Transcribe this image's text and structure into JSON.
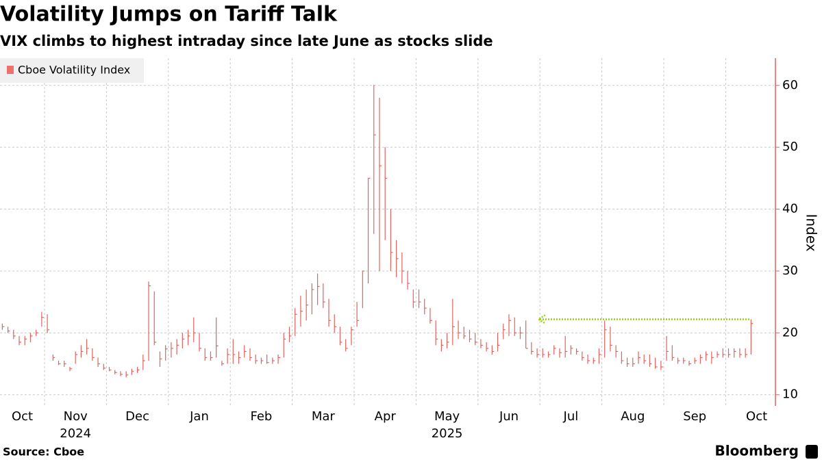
{
  "chart_data": {
    "type": "ohlc",
    "title": "Volatility Jumps on Tariff Talk",
    "subtitle": "VIX climbs to highest intraday since late June as stocks slide",
    "y_label": "Index",
    "source": "Source: Cboe",
    "brand": "Bloomberg",
    "categories": [
      "Oct",
      "Nov",
      "Dec",
      "Jan",
      "Feb",
      "Mar",
      "Apr",
      "May",
      "Jun",
      "Jul",
      "Aug",
      "Sep",
      "Oct"
    ],
    "years": [
      null,
      "2024",
      null,
      null,
      null,
      null,
      null,
      "2025",
      null,
      null,
      null,
      null,
      null
    ],
    "ylim": [
      8.2,
      64.4
    ],
    "yticks": [
      10,
      20,
      30,
      40,
      50,
      60
    ],
    "grid": true,
    "legend": "top-left",
    "arrow_color": "#8fd400",
    "series": [
      {
        "name": "Cboe Volatility Index",
        "color": "#e0625c",
        "high": [
          [
            21.5,
            21,
            20.5,
            19.5,
            19.5,
            20,
            20.5,
            23.4
          ],
          [
            23,
            16.5,
            15.5,
            15.5,
            14.5,
            17,
            18,
            19,
            17.5,
            16,
            15
          ],
          [
            14.5,
            14,
            13.8,
            13.8,
            14.2,
            14.5,
            16.5,
            28.3,
            26.7,
            17,
            18
          ],
          [
            18.5,
            19,
            20,
            20.5,
            22.5,
            20,
            17.5,
            17,
            22.5,
            15.5,
            17.5
          ],
          [
            19,
            17,
            18,
            17.5,
            16.5,
            16,
            16.5,
            16,
            16.5,
            20,
            21
          ],
          [
            24,
            26,
            27,
            28,
            29.6,
            28,
            25.5,
            23,
            21,
            19,
            21
          ],
          [
            25,
            30,
            45,
            60.1,
            58,
            50,
            40,
            35,
            33,
            30,
            27
          ],
          [
            27,
            25.5,
            24,
            22,
            19,
            20,
            25.5,
            22,
            21,
            20.5,
            20
          ],
          [
            19,
            18.5,
            18,
            20,
            21.5,
            23,
            22.5,
            21,
            22,
            18.5,
            17.5
          ],
          [
            17.5,
            17,
            18,
            17.5,
            19.5,
            18,
            17.5,
            17,
            16.5,
            16,
            17.5
          ],
          [
            22,
            21,
            18,
            17,
            16,
            16,
            17,
            16.5,
            16.5,
            16,
            15.5
          ],
          [
            19.5,
            18,
            16,
            16,
            15.5,
            16,
            16.5,
            17,
            17,
            17,
            17.5
          ],
          [
            17.5,
            17.5,
            17.5,
            17.5,
            22.2
          ]
        ],
        "low": [
          [
            20.5,
            20,
            19,
            18,
            18,
            18.5,
            19.5,
            21
          ],
          [
            20,
            15.5,
            14.8,
            14.5,
            13.8,
            15,
            16,
            16.5,
            15.5,
            14.5,
            14
          ],
          [
            13.8,
            13.3,
            13,
            12.8,
            13.2,
            13.5,
            14,
            15.5,
            18,
            14.5,
            15.5
          ],
          [
            16,
            16.5,
            17.5,
            18,
            18.5,
            17,
            15.5,
            15.5,
            16,
            14.7,
            15
          ],
          [
            15,
            15,
            16,
            15.5,
            15,
            15,
            15,
            15,
            15,
            16,
            18.5
          ],
          [
            19.5,
            21,
            22,
            23,
            24.5,
            24,
            21,
            20,
            18,
            17,
            18
          ],
          [
            21,
            24,
            28,
            36,
            30,
            35,
            30,
            29,
            28,
            27,
            24
          ],
          [
            24,
            23,
            21.5,
            18,
            17,
            17.5,
            18,
            19,
            19,
            18.5,
            18
          ],
          [
            17.5,
            17,
            16.5,
            17,
            19,
            19.5,
            19.5,
            19,
            17.5,
            16.5,
            16
          ],
          [
            16,
            16,
            16.5,
            16,
            16,
            16.5,
            16.5,
            15.5,
            15,
            15,
            15
          ],
          [
            16,
            17,
            16,
            15,
            14.5,
            14.5,
            15,
            15,
            14.5,
            14.2,
            14
          ],
          [
            15.5,
            15.5,
            15,
            15,
            14.7,
            15,
            15,
            15.5,
            15,
            16,
            16
          ],
          [
            16,
            16,
            16,
            16,
            16.5
          ]
        ],
        "close": [
          [
            21,
            20.3,
            19.5,
            18.5,
            19,
            19.5,
            20,
            22.5
          ],
          [
            20.5,
            16,
            15,
            15,
            14.2,
            16.5,
            17,
            17.5,
            16,
            15,
            14.3
          ],
          [
            14,
            13.6,
            13.3,
            13.2,
            13.8,
            14,
            15.5,
            27.6,
            18.5,
            15.8,
            17.4
          ],
          [
            17.5,
            18,
            19,
            19.5,
            20,
            17.5,
            16,
            16,
            17.9,
            15,
            16.5
          ],
          [
            16.5,
            16,
            17,
            16,
            15.5,
            15.5,
            15.2,
            15.5,
            16,
            19,
            19.5
          ],
          [
            23,
            23.5,
            24.5,
            27,
            27.5,
            25,
            22,
            21,
            18.5,
            17.5,
            20.5
          ],
          [
            22,
            30,
            45,
            52,
            47,
            45,
            33,
            32,
            30,
            28,
            25
          ],
          [
            25,
            24,
            22,
            19,
            18,
            18.5,
            21,
            20,
            19.5,
            19,
            18.5
          ],
          [
            18,
            17.5,
            17,
            18,
            20.5,
            22,
            20,
            20,
            17.5,
            17,
            16.5
          ],
          [
            16.5,
            16.5,
            17.5,
            16.8,
            17,
            17.5,
            17,
            16,
            15.5,
            15.5,
            16.5
          ],
          [
            20.5,
            18,
            17,
            15.5,
            15,
            15,
            16,
            15.5,
            15,
            14.5,
            14.5
          ],
          [
            17,
            16,
            15.5,
            15.5,
            15,
            15.5,
            16,
            16.5,
            16,
            16.5,
            16.5
          ],
          [
            16.5,
            17,
            16.5,
            16.5,
            21.5
          ]
        ]
      }
    ]
  }
}
